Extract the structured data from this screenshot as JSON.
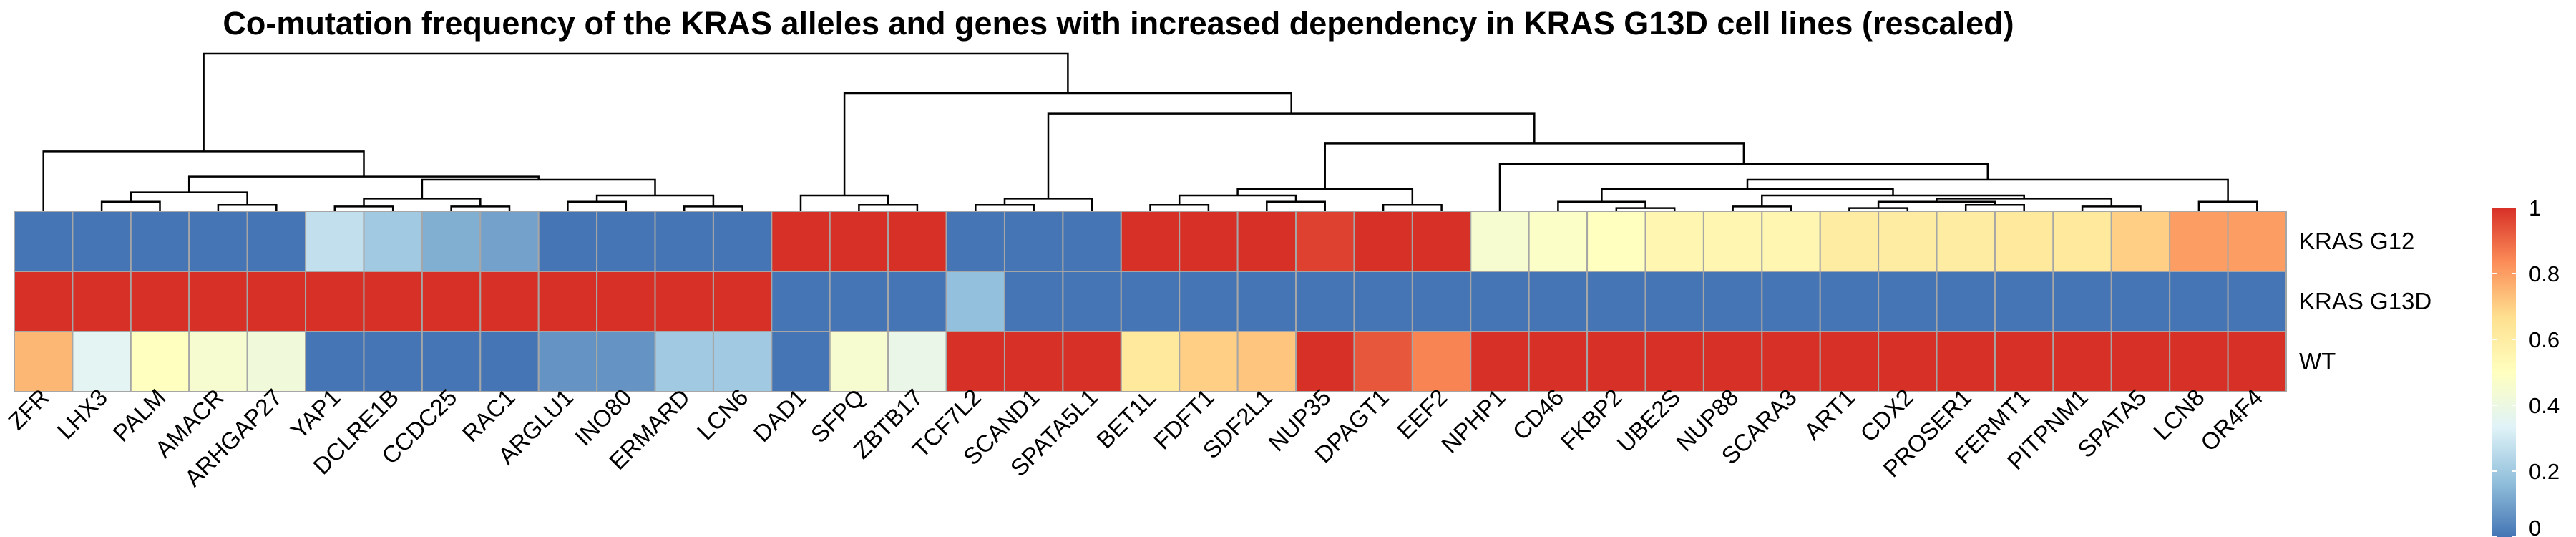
{
  "chart_data": {
    "type": "heatmap",
    "title": "Co-mutation frequency of the KRAS alleles and genes with increased dependency in KRAS G13D cell lines (rescaled)",
    "columns": [
      "ZFR",
      "LHX3",
      "PALM",
      "AMACR",
      "ARHGAP27",
      "YAP1",
      "DCLRE1B",
      "CCDC25",
      "RAC1",
      "ARGLU1",
      "INO80",
      "ERMARD",
      "LCN6",
      "DAD1",
      "SFPQ",
      "ZBTB17",
      "TCF7L2",
      "SCAND1",
      "SPATA5L1",
      "BET1L",
      "FDFT1",
      "SDF2L1",
      "NUP35",
      "DPAGT1",
      "EEF2",
      "NPHP1",
      "CD46",
      "FKBP2",
      "UBE2S",
      "NUP88",
      "SCARA3",
      "ART1",
      "CDX2",
      "PROSER1",
      "FERMT1",
      "PITPNM1",
      "SPATA5",
      "LCN8",
      "OR4F4"
    ],
    "rows": [
      "KRAS G12",
      "KRAS G13D",
      "WT"
    ],
    "values": [
      [
        0,
        0,
        0,
        0,
        0,
        0.27,
        0.2,
        0.13,
        0.1,
        0,
        0,
        0,
        0,
        1,
        1,
        1,
        0,
        0,
        0,
        1,
        1,
        1,
        0.97,
        1,
        1,
        0.45,
        0.48,
        0.5,
        0.55,
        0.55,
        0.55,
        0.6,
        0.6,
        0.6,
        0.62,
        0.62,
        0.7,
        0.8,
        0.8
      ],
      [
        1,
        1,
        1,
        1,
        1,
        1,
        1,
        1,
        1,
        1,
        1,
        1,
        1,
        0,
        0,
        0,
        0.17,
        0,
        0,
        0,
        0,
        0,
        0,
        0,
        0,
        0,
        0,
        0,
        0,
        0,
        0,
        0,
        0,
        0,
        0,
        0,
        0,
        0,
        0
      ],
      [
        0.75,
        0.35,
        0.5,
        0.45,
        0.42,
        0,
        0,
        0,
        0,
        0.07,
        0.07,
        0.2,
        0.2,
        0,
        0.45,
        0.38,
        1,
        1,
        1,
        0.62,
        0.7,
        0.72,
        1,
        0.93,
        0.85,
        1,
        1,
        1,
        1,
        1,
        1,
        1,
        1,
        1,
        1,
        1,
        1,
        1,
        1
      ]
    ],
    "colorbar": {
      "min": 0,
      "max": 1,
      "ticks": [
        "0",
        "0.2",
        "0.4",
        "0.6",
        "0.8",
        "1"
      ],
      "colors": [
        "#4575b4",
        "#91bfdb",
        "#e0f3f8",
        "#ffffbf",
        "#fee090",
        "#fc8d59",
        "#d73027"
      ]
    },
    "column_dendrogram": {
      "merges": [
        [
          -6,
          -7
        ],
        [
          -8,
          -9
        ],
        [
          -10,
          -11
        ],
        [
          -12,
          -13
        ],
        [
          3,
          4
        ],
        [
          1,
          2
        ],
        [
          6,
          5
        ],
        [
          -2,
          -3
        ],
        [
          -4,
          -5
        ],
        [
          8,
          9
        ],
        [
          10,
          7
        ],
        [
          -1,
          11
        ],
        [
          -15,
          -16
        ],
        [
          -14,
          13
        ],
        [
          -17,
          -18
        ],
        [
          15,
          -19
        ],
        [
          -20,
          -21
        ],
        [
          -22,
          -23
        ],
        [
          17,
          18
        ],
        [
          -24,
          -25
        ],
        [
          19,
          20
        ],
        [
          -28,
          -29
        ],
        [
          -27,
          22
        ],
        [
          -30,
          -31
        ],
        [
          -32,
          -33
        ],
        [
          -34,
          -35
        ],
        [
          25,
          26
        ],
        [
          -36,
          -37
        ],
        [
          27,
          28
        ],
        [
          24,
          29
        ],
        [
          23,
          30
        ],
        [
          -38,
          -39
        ],
        [
          31,
          32
        ],
        [
          -26,
          33
        ],
        [
          21,
          34
        ],
        [
          16,
          35
        ],
        [
          14,
          36
        ],
        [
          12,
          37
        ]
      ],
      "heights": [
        0.03,
        0.03,
        0.06,
        0.03,
        0.1,
        0.08,
        0.2,
        0.06,
        0.04,
        0.12,
        0.22,
        0.38,
        0.04,
        0.1,
        0.04,
        0.08,
        0.04,
        0.06,
        0.1,
        0.04,
        0.14,
        0.02,
        0.06,
        0.03,
        0.02,
        0.04,
        0.06,
        0.03,
        0.08,
        0.1,
        0.14,
        0.06,
        0.2,
        0.3,
        0.43,
        0.62,
        0.75,
        1.0
      ]
    }
  }
}
